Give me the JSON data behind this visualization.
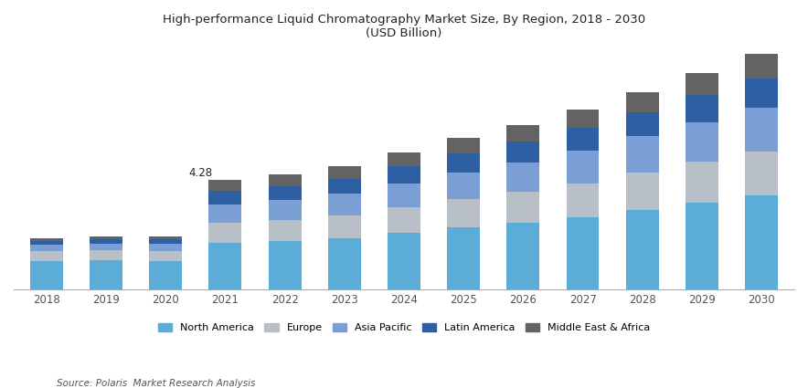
{
  "years": [
    "2018",
    "2019",
    "2020",
    "2021",
    "2022",
    "2023",
    "2024",
    "2025",
    "2026",
    "2027",
    "2028",
    "2029",
    "2030"
  ],
  "north_america": [
    1.1,
    1.12,
    1.08,
    1.8,
    1.88,
    2.0,
    2.2,
    2.42,
    2.6,
    2.82,
    3.1,
    3.4,
    3.68
  ],
  "europe": [
    0.38,
    0.4,
    0.42,
    0.8,
    0.84,
    0.9,
    1.0,
    1.1,
    1.2,
    1.32,
    1.45,
    1.58,
    1.72
  ],
  "asia_pacific": [
    0.25,
    0.27,
    0.28,
    0.72,
    0.76,
    0.84,
    0.94,
    1.06,
    1.17,
    1.3,
    1.43,
    1.57,
    1.72
  ],
  "latin_america": [
    0.16,
    0.17,
    0.17,
    0.52,
    0.54,
    0.59,
    0.66,
    0.73,
    0.8,
    0.88,
    0.96,
    1.05,
    1.14
  ],
  "mea": [
    0.1,
    0.11,
    0.11,
    0.44,
    0.46,
    0.5,
    0.55,
    0.61,
    0.67,
    0.73,
    0.79,
    0.86,
    0.94
  ],
  "colors": {
    "north_america": "#5bacd6",
    "europe": "#b8bfc7",
    "asia_pacific": "#7b9fd4",
    "latin_america": "#2e5fa3",
    "mea": "#636363"
  },
  "annotation_year": "2021",
  "annotation_value": "4.28",
  "title_line1": "High-performance Liquid Chromatography Market Size, By Region, 2018 - 2030",
  "title_line2": "(USD Billion)",
  "source": "Source: Polaris  Market Research Analysis",
  "legend_labels": [
    "North America",
    "Europe",
    "Asia Pacific",
    "Latin America",
    "Middle East & Africa"
  ]
}
